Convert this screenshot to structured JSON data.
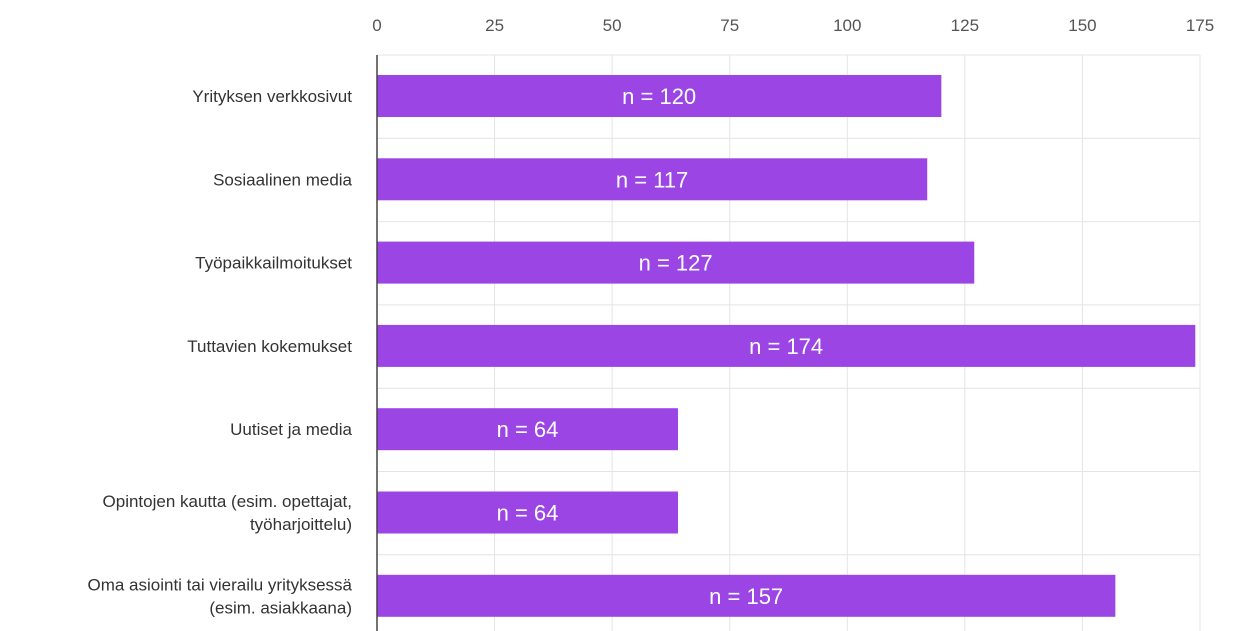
{
  "chart_data": {
    "type": "bar",
    "orientation": "horizontal",
    "categories": [
      [
        "Yrityksen verkkosivut"
      ],
      [
        "Sosiaalinen media"
      ],
      [
        "Työpaikkailmoitukset"
      ],
      [
        "Tuttavien kokemukset"
      ],
      [
        "Uutiset ja media"
      ],
      [
        "Opintojen kautta (esim. opettajat,",
        "työharjoittelu)"
      ],
      [
        "Oma asiointi tai vierailu yrityksessä",
        "(esim. asiakkaana)"
      ]
    ],
    "values": [
      120,
      117,
      127,
      174,
      64,
      64,
      157
    ],
    "data_labels": [
      "n = 120",
      "n = 117",
      "n = 127",
      "n = 174",
      "n = 64",
      "n = 64",
      "n = 157"
    ],
    "x_ticks": [
      "0",
      "25",
      "50",
      "75",
      "100",
      "125",
      "150",
      "175"
    ],
    "xlim": [
      0,
      175
    ],
    "axis_position": "top",
    "grid": true,
    "bar_color": "#9b45e4"
  }
}
